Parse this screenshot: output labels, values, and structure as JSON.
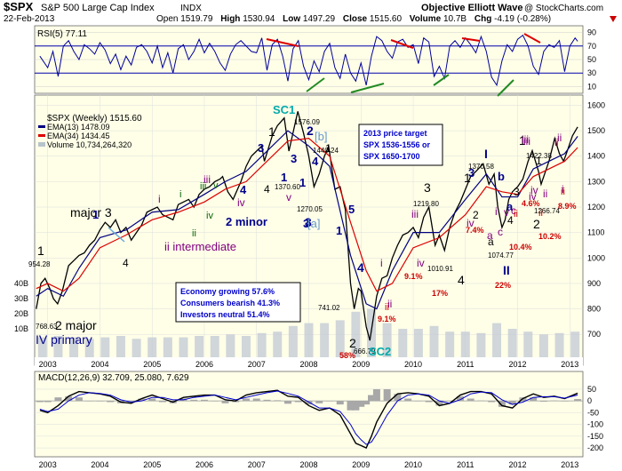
{
  "header": {
    "symbol": "$SPX",
    "name": "S&P 500 Large Cap Index",
    "exchange": "INDX",
    "brand": "Objective Elliott Wave",
    "provider": "@ StockCharts.com",
    "date": "22-Feb-2013",
    "open_label": "Open",
    "open": "1519.79",
    "high_label": "High",
    "high": "1530.94",
    "low_label": "Low",
    "low": "1497.29",
    "close_label": "Close",
    "close": "1515.60",
    "volume_label": "Volume",
    "volume": "10.7B",
    "chg_label": "Chg",
    "chg": "-4.19 (-0.28%)"
  },
  "chart_data": [
    {
      "type": "line",
      "panel": "rsi",
      "legend": "RSI(5) 77.11",
      "ylim": [
        0,
        100
      ],
      "yticks": [
        10,
        30,
        50,
        70,
        90
      ],
      "guides": [
        30,
        70
      ],
      "x": [
        2002.85,
        2003.0,
        2003.1,
        2003.2,
        2003.3,
        2003.4,
        2003.5,
        2003.6,
        2003.7,
        2003.8,
        2003.9,
        2004.0,
        2004.1,
        2004.2,
        2004.3,
        2004.4,
        2004.5,
        2004.6,
        2004.7,
        2004.8,
        2004.9,
        2005.0,
        2005.1,
        2005.2,
        2005.3,
        2005.4,
        2005.5,
        2005.6,
        2005.7,
        2005.8,
        2005.9,
        2006.0,
        2006.1,
        2006.2,
        2006.3,
        2006.4,
        2006.5,
        2006.6,
        2006.7,
        2006.8,
        2006.9,
        2007.0,
        2007.1,
        2007.2,
        2007.3,
        2007.4,
        2007.5,
        2007.6,
        2007.7,
        2007.8,
        2007.9,
        2008.0,
        2008.1,
        2008.2,
        2008.3,
        2008.4,
        2008.5,
        2008.6,
        2008.7,
        2008.8,
        2008.9,
        2009.0,
        2009.1,
        2009.2,
        2009.3,
        2009.4,
        2009.5,
        2009.6,
        2009.7,
        2009.8,
        2009.9,
        2010.0,
        2010.1,
        2010.2,
        2010.3,
        2010.4,
        2010.5,
        2010.6,
        2010.7,
        2010.8,
        2010.9,
        2011.0,
        2011.1,
        2011.2,
        2011.3,
        2011.4,
        2011.5,
        2011.6,
        2011.7,
        2011.8,
        2011.9,
        2012.0,
        2012.1,
        2012.2,
        2012.3,
        2012.4,
        2012.5,
        2012.6,
        2012.7,
        2012.8,
        2012.9,
        2013.0,
        2013.1,
        2013.15
      ],
      "values": [
        55,
        38,
        62,
        25,
        70,
        78,
        62,
        50,
        72,
        66,
        58,
        75,
        64,
        44,
        58,
        35,
        55,
        42,
        68,
        72,
        62,
        45,
        70,
        38,
        60,
        30,
        66,
        72,
        50,
        62,
        80,
        60,
        74,
        62,
        45,
        34,
        58,
        72,
        78,
        70,
        62,
        60,
        82,
        34,
        72,
        80,
        55,
        18,
        66,
        78,
        40,
        20,
        48,
        32,
        62,
        74,
        38,
        22,
        58,
        30,
        18,
        45,
        12,
        55,
        84,
        78,
        62,
        52,
        76,
        80,
        68,
        72,
        44,
        82,
        76,
        25,
        40,
        22,
        70,
        78,
        68,
        82,
        72,
        60,
        84,
        62,
        24,
        12,
        48,
        72,
        62,
        80,
        86,
        70,
        40,
        28,
        62,
        72,
        68,
        78,
        32,
        70,
        82,
        77
      ]
    },
    {
      "type": "line",
      "panel": "price",
      "ylim": [
        610,
        1640
      ],
      "yticks": [
        700,
        800,
        900,
        1000,
        1100,
        1200,
        1300,
        1400,
        1500,
        1600
      ],
      "xlim": [
        2002.75,
        2013.25
      ],
      "xticks": [
        "2003",
        "2004",
        "2005",
        "2006",
        "2007",
        "2008",
        "2009",
        "2010",
        "2011",
        "2012",
        "2013"
      ],
      "legend_title": "$SPX (Weekly) 1515.60",
      "legend_ema13": "EMA(13) 1478.09",
      "legend_ema34": "EMA(34) 1434.45",
      "legend_volume": "Volume 10,734,264,320",
      "series": [
        {
          "name": "$SPX (Weekly) 1515.60",
          "x": [
            2002.78,
            2002.87,
            2002.95,
            2003.04,
            2003.11,
            2003.19,
            2003.28,
            2003.4,
            2003.5,
            2003.6,
            2003.7,
            2003.8,
            2003.9,
            2004.0,
            2004.1,
            2004.2,
            2004.3,
            2004.4,
            2004.5,
            2004.6,
            2004.7,
            2004.8,
            2004.9,
            2005.0,
            2005.1,
            2005.2,
            2005.3,
            2005.4,
            2005.5,
            2005.6,
            2005.7,
            2005.8,
            2005.9,
            2006.0,
            2006.1,
            2006.2,
            2006.3,
            2006.35,
            2006.45,
            2006.55,
            2006.7,
            2006.8,
            2006.9,
            2007.0,
            2007.1,
            2007.15,
            2007.3,
            2007.4,
            2007.53,
            2007.62,
            2007.79,
            2007.9,
            2008.0,
            2008.1,
            2008.2,
            2008.3,
            2008.38,
            2008.5,
            2008.6,
            2008.7,
            2008.8,
            2008.87,
            2008.95,
            2009.0,
            2009.1,
            2009.17,
            2009.3,
            2009.4,
            2009.5,
            2009.6,
            2009.7,
            2009.8,
            2009.9,
            2010.0,
            2010.1,
            2010.2,
            2010.3,
            2010.42,
            2010.5,
            2010.6,
            2010.7,
            2010.8,
            2010.9,
            2011.0,
            2011.1,
            2011.2,
            2011.34,
            2011.45,
            2011.55,
            2011.62,
            2011.7,
            2011.76,
            2011.83,
            2011.9,
            2012.0,
            2012.1,
            2012.2,
            2012.28,
            2012.4,
            2012.45,
            2012.6,
            2012.71,
            2012.8,
            2012.88,
            2012.95,
            2013.05,
            2013.15
          ],
          "values": [
            800,
            900,
            920,
            880,
            840,
            820,
            870,
            970,
            990,
            1010,
            1020,
            1050,
            1070,
            1110,
            1140,
            1120,
            1150,
            1100,
            1120,
            1070,
            1100,
            1130,
            1180,
            1190,
            1200,
            1170,
            1160,
            1150,
            1210,
            1220,
            1230,
            1200,
            1250,
            1270,
            1280,
            1300,
            1310,
            1320,
            1260,
            1230,
            1300,
            1360,
            1400,
            1420,
            1440,
            1380,
            1480,
            1520,
            1550,
            1420,
            1576,
            1490,
            1400,
            1280,
            1330,
            1400,
            1440,
            1270,
            1280,
            1190,
            900,
            800,
            880,
            870,
            730,
            676,
            850,
            920,
            930,
            1000,
            1050,
            1090,
            1100,
            1120,
            1080,
            1160,
            1200,
            1050,
            1090,
            1030,
            1120,
            1180,
            1220,
            1270,
            1320,
            1340,
            1370,
            1290,
            1330,
            1200,
            1120,
            1150,
            1230,
            1260,
            1280,
            1310,
            1380,
            1422,
            1340,
            1290,
            1380,
            1470,
            1410,
            1380,
            1420,
            1480,
            1515
          ]
        },
        {
          "name": "EMA(13) 1478.09",
          "x": [
            2002.78,
            2003.0,
            2003.3,
            2003.6,
            2004.0,
            2004.5,
            2005.0,
            2005.5,
            2006.0,
            2006.4,
            2006.8,
            2007.2,
            2007.6,
            2008.0,
            2008.4,
            2008.8,
            2009.1,
            2009.3,
            2009.6,
            2010.0,
            2010.5,
            2011.0,
            2011.4,
            2011.7,
            2012.0,
            2012.3,
            2012.6,
            2012.9,
            2013.15
          ],
          "values": [
            850,
            880,
            850,
            960,
            1080,
            1110,
            1180,
            1190,
            1250,
            1300,
            1340,
            1420,
            1500,
            1440,
            1360,
            1010,
            820,
            800,
            950,
            1100,
            1100,
            1230,
            1330,
            1240,
            1240,
            1350,
            1380,
            1410,
            1478
          ]
        },
        {
          "name": "EMA(34) 1434.45",
          "x": [
            2002.78,
            2003.0,
            2003.3,
            2003.6,
            2004.0,
            2004.5,
            2005.0,
            2005.5,
            2006.0,
            2006.4,
            2006.8,
            2007.2,
            2007.6,
            2008.0,
            2008.4,
            2008.8,
            2009.1,
            2009.3,
            2009.6,
            2010.0,
            2010.5,
            2011.0,
            2011.4,
            2011.7,
            2012.0,
            2012.3,
            2012.6,
            2012.9,
            2013.15
          ],
          "values": [
            880,
            900,
            870,
            920,
            1040,
            1090,
            1150,
            1180,
            1220,
            1270,
            1300,
            1380,
            1460,
            1470,
            1400,
            1140,
            950,
            870,
            900,
            1040,
            1080,
            1170,
            1280,
            1260,
            1250,
            1320,
            1350,
            1380,
            1434
          ]
        }
      ],
      "volume_x": [
        2002.9,
        2003.2,
        2003.5,
        2003.8,
        2004.1,
        2004.4,
        2004.7,
        2005.0,
        2005.3,
        2005.6,
        2005.9,
        2006.2,
        2006.5,
        2006.8,
        2007.1,
        2007.4,
        2007.7,
        2008.0,
        2008.3,
        2008.6,
        2008.9,
        2009.2,
        2009.5,
        2009.8,
        2010.1,
        2010.4,
        2010.7,
        2011.0,
        2011.3,
        2011.6,
        2011.9,
        2012.2,
        2012.5,
        2012.8,
        2013.1
      ],
      "volume_values": [
        7,
        7.5,
        7,
        6.5,
        7,
        7.5,
        6.5,
        7,
        7,
        7,
        7.5,
        7.5,
        8,
        7.5,
        8.5,
        9,
        11,
        12,
        12,
        13,
        16,
        17,
        12,
        10,
        10,
        11,
        9,
        9,
        8.5,
        12,
        10,
        9,
        8,
        8.5,
        9
      ],
      "price_labels": [
        "954.28",
        "768.63",
        "1576.09",
        "1440.24",
        "1370.60",
        "1270.05",
        "741.02",
        "666.79",
        "1219.80",
        "1010.91",
        "1370.58",
        "1074.77",
        "1422.38",
        "1266.74"
      ],
      "wave_labels_black": [
        "1",
        "major 3",
        "4",
        "2 major",
        "1",
        "4",
        "1",
        "2",
        "3",
        "4",
        "1",
        "2",
        "1",
        "3",
        "4",
        "a",
        "2",
        "1"
      ],
      "wave_labels_blue": [
        "1",
        "3",
        "4",
        "1",
        "3",
        "2 minor",
        "1",
        "2",
        "3",
        "4",
        "3",
        "4",
        "1",
        "I",
        "II",
        "5",
        "b",
        "a",
        "3"
      ],
      "wave_labels_purple": [
        "i",
        "iii",
        "iv",
        "v",
        "i",
        "ii",
        "iii",
        "iv",
        "iv",
        "a",
        "i",
        "i",
        "iii",
        "iv",
        "c",
        "ii",
        "i",
        "iii",
        "v",
        "c",
        "iv",
        "ii"
      ],
      "wave_labels_green": [
        "i",
        "ii",
        "iii",
        "iv",
        "v"
      ],
      "wave_labels_red": [
        "ii",
        "i",
        "ii",
        "ii",
        "ii"
      ],
      "percent_labels": [
        "58%",
        "9.1%",
        "9.1%",
        "17%",
        "7.4%",
        "10.4%",
        "22%",
        "4.6%",
        "10.2%",
        "8.9%"
      ],
      "cycle_labels": [
        "SC1",
        "SC2"
      ],
      "bracket_labels": [
        "[b]",
        "[a]"
      ],
      "label_ii_intermediate": "ii intermediate",
      "label_iv_primary": "IV primary",
      "target_title": "2013 price target",
      "target_line1": "SPX 1536-1556 or",
      "target_line2": "SPX 1650-1700",
      "info_line1": "Economy growing 57.6%",
      "info_line2": "Consumers bearish 41.3%",
      "info_line3": "Investors neutral 51.4%",
      "left_vol_ticks": [
        "40B",
        "30B",
        "20B",
        "10B"
      ]
    },
    {
      "type": "line",
      "panel": "macd",
      "legend": "MACD(12,26,9) 32.709, 25.080, 7.629",
      "yticks": [
        -200,
        -150,
        -100,
        -50,
        0,
        50
      ],
      "ylim": [
        -230,
        80
      ],
      "x": [
        2002.85,
        2003.0,
        2003.2,
        2003.4,
        2003.6,
        2003.8,
        2004.0,
        2004.2,
        2004.4,
        2004.6,
        2004.8,
        2005.0,
        2005.2,
        2005.4,
        2005.6,
        2005.8,
        2006.0,
        2006.2,
        2006.4,
        2006.6,
        2006.8,
        2007.0,
        2007.2,
        2007.4,
        2007.6,
        2007.8,
        2008.0,
        2008.2,
        2008.4,
        2008.6,
        2008.8,
        2008.9,
        2009.0,
        2009.1,
        2009.2,
        2009.3,
        2009.5,
        2009.7,
        2009.9,
        2010.1,
        2010.3,
        2010.5,
        2010.7,
        2010.9,
        2011.1,
        2011.3,
        2011.5,
        2011.7,
        2011.9,
        2012.1,
        2012.3,
        2012.5,
        2012.7,
        2012.9,
        2013.15
      ],
      "series": [
        {
          "name": "MACD",
          "values": [
            -40,
            -50,
            -20,
            20,
            40,
            35,
            30,
            20,
            -5,
            -10,
            10,
            25,
            10,
            -5,
            15,
            20,
            25,
            25,
            5,
            0,
            25,
            35,
            40,
            45,
            20,
            15,
            -20,
            -40,
            -30,
            -60,
            -140,
            -180,
            -190,
            -200,
            -150,
            -90,
            -10,
            30,
            35,
            30,
            20,
            -20,
            -10,
            25,
            40,
            40,
            30,
            -20,
            -30,
            10,
            30,
            15,
            20,
            10,
            33
          ]
        },
        {
          "name": "Signal",
          "values": [
            -35,
            -45,
            -35,
            0,
            25,
            35,
            32,
            25,
            5,
            -5,
            0,
            15,
            15,
            5,
            5,
            15,
            20,
            25,
            15,
            5,
            15,
            25,
            35,
            42,
            32,
            20,
            -5,
            -30,
            -30,
            -45,
            -100,
            -140,
            -165,
            -185,
            -175,
            -140,
            -60,
            0,
            25,
            30,
            25,
            0,
            -10,
            5,
            30,
            38,
            35,
            5,
            -15,
            -5,
            15,
            18,
            18,
            12,
            25
          ]
        }
      ]
    }
  ]
}
